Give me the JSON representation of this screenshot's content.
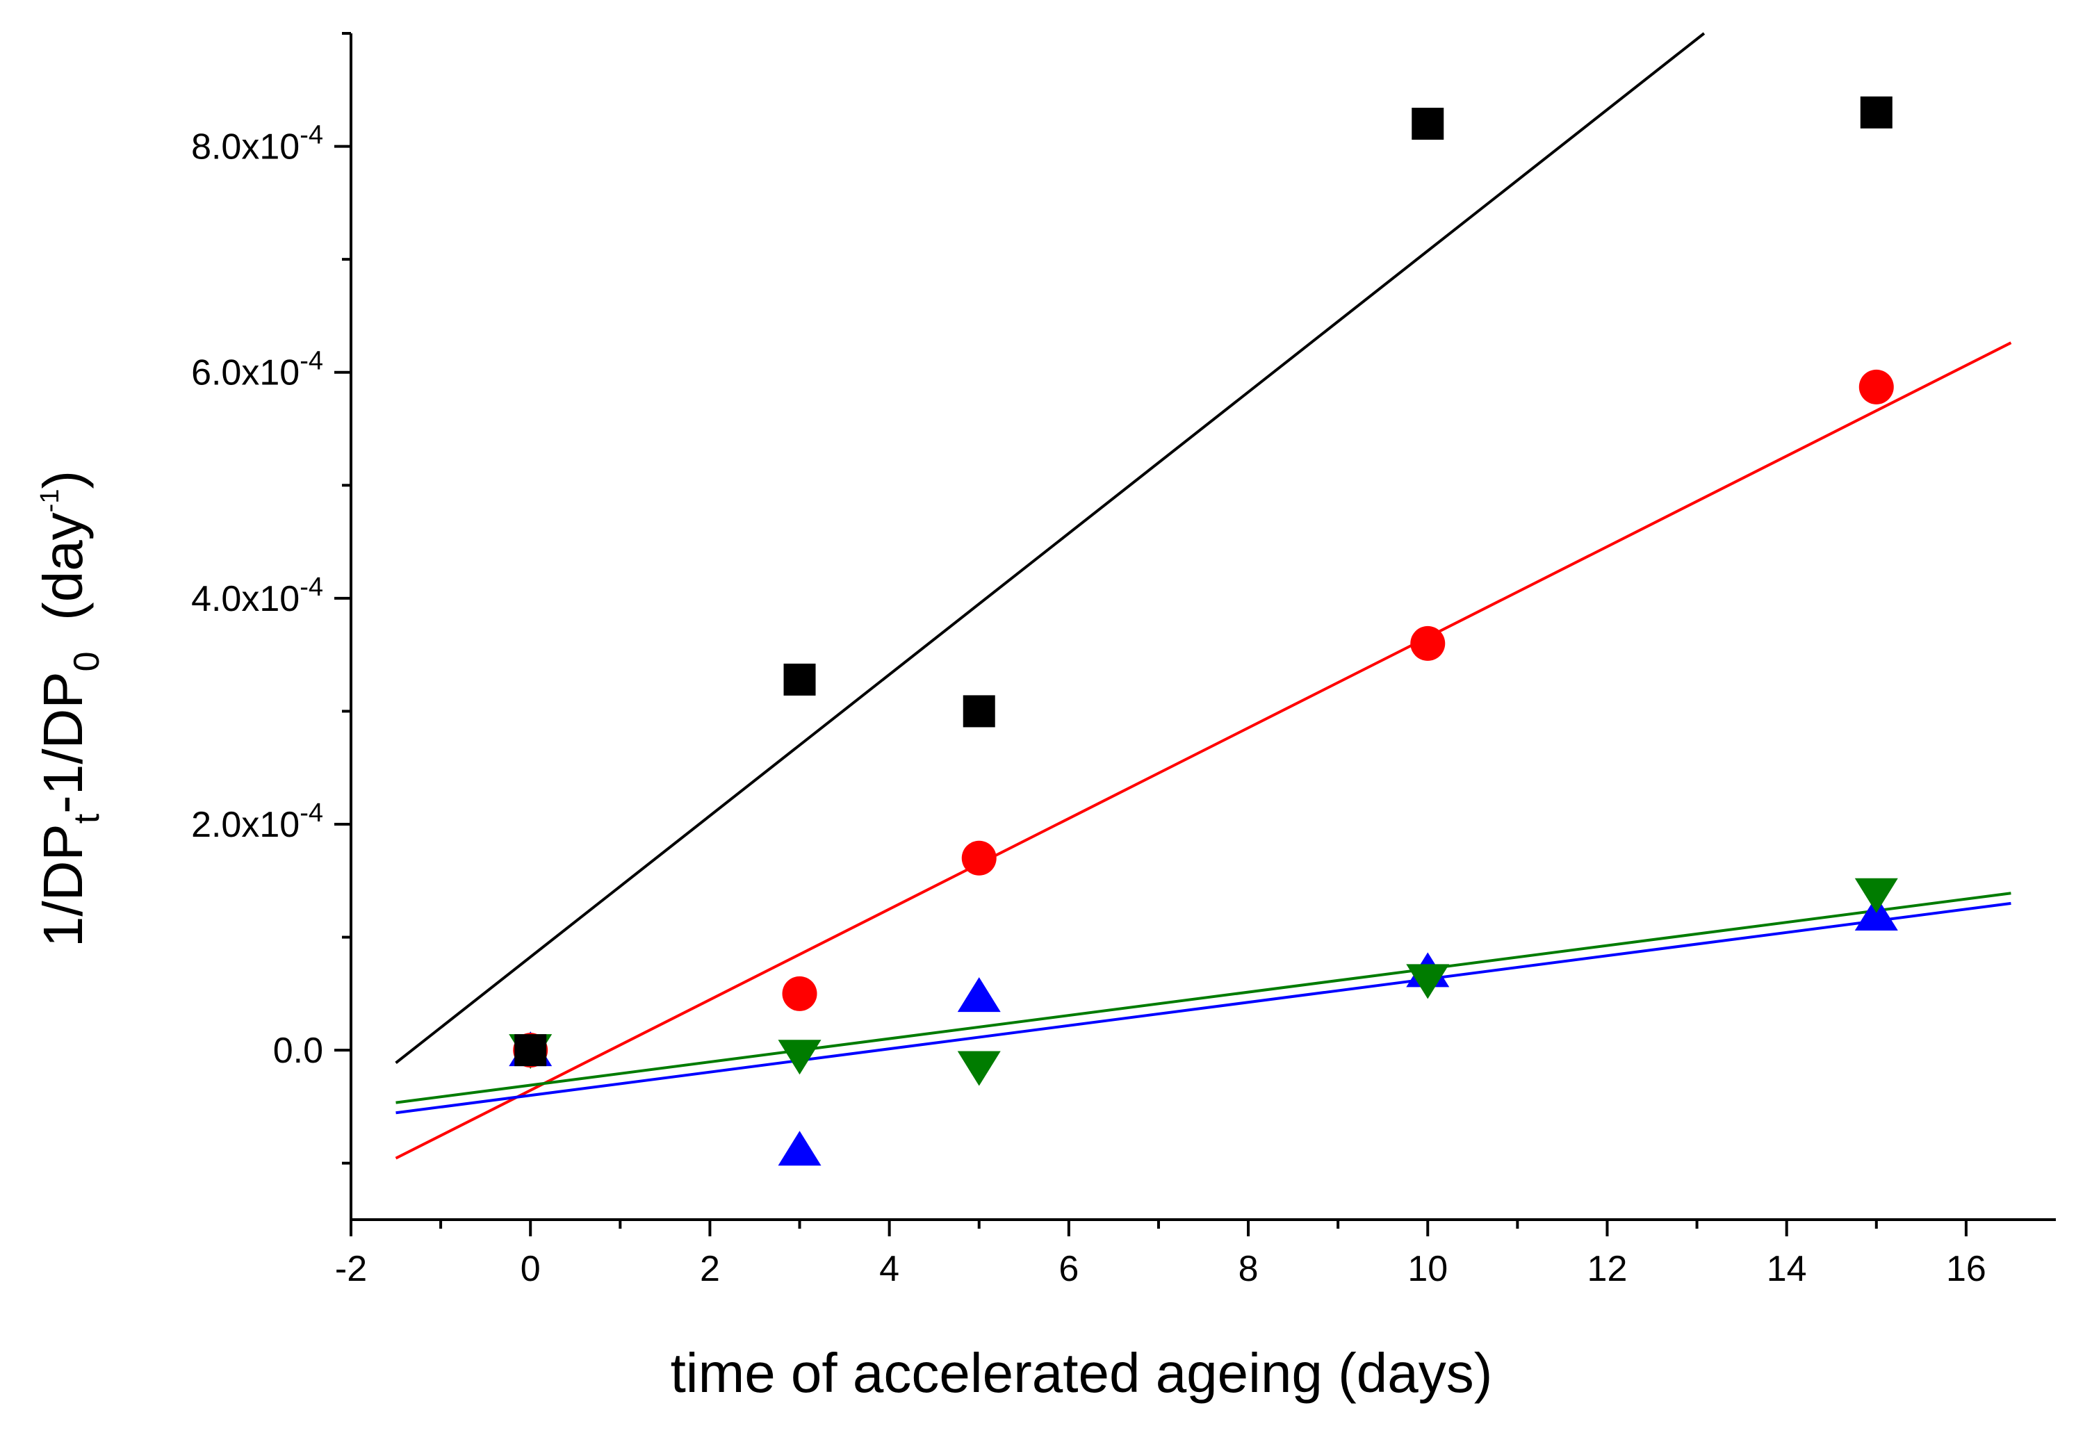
{
  "chart_data": {
    "type": "scatter",
    "title": "",
    "xlabel": "time of accelerated ageing (days)",
    "ylabel": {
      "main1": "1/DP",
      "sub1": "t",
      "main2": "-1/DP",
      "sub2": "0",
      "main3": "  (day",
      "sup": "-1",
      "main4": ")"
    },
    "xlim": [
      -2,
      17
    ],
    "ylim": [
      -0.00015,
      0.0009
    ],
    "x_ticks": [
      -2,
      0,
      2,
      4,
      6,
      8,
      10,
      12,
      14,
      16
    ],
    "y_ticks": [
      {
        "value": 0.0,
        "mantissa": "0.0",
        "exponent": ""
      },
      {
        "value": 0.0002,
        "mantissa": "2.0x10",
        "exponent": "-4"
      },
      {
        "value": 0.0004,
        "mantissa": "4.0x10",
        "exponent": "-4"
      },
      {
        "value": 0.0006,
        "mantissa": "6.0x10",
        "exponent": "-4"
      },
      {
        "value": 0.0008,
        "mantissa": "8.0x10",
        "exponent": "-4"
      }
    ],
    "series": [
      {
        "name": "black-squares",
        "marker": "square",
        "color": "#000000",
        "x": [
          0,
          3,
          5,
          10,
          15
        ],
        "y": [
          0.0,
          0.000328,
          0.0003,
          0.00082,
          0.00083
        ],
        "fit": {
          "slope": 6.25e-05,
          "intercept": 8.25e-05,
          "x_range": [
            -1.5,
            16.5
          ]
        }
      },
      {
        "name": "red-circles",
        "marker": "circle",
        "color": "#ff0000",
        "x": [
          0,
          3,
          5,
          10,
          15
        ],
        "y": [
          0.0,
          5e-05,
          0.00017,
          0.00036,
          0.000587
        ],
        "fit": {
          "slope": 4.01e-05,
          "intercept": -3.55e-05,
          "x_range": [
            -1.5,
            16.5
          ]
        }
      },
      {
        "name": "blue-triangles-up",
        "marker": "triangle-up",
        "color": "#0000ff",
        "x": [
          0,
          3,
          5,
          10,
          15
        ],
        "y": [
          0.0,
          -8.8e-05,
          4.8e-05,
          7e-05,
          0.00012
        ],
        "fit": {
          "slope": 1.03e-05,
          "intercept": -4e-05,
          "x_range": [
            -1.5,
            16.5
          ]
        }
      },
      {
        "name": "green-triangles-down",
        "marker": "triangle-down",
        "color": "#007c00",
        "x": [
          0,
          3,
          5,
          10,
          15
        ],
        "y": [
          0.0,
          -5e-06,
          -1.5e-05,
          6.2e-05,
          0.000138
        ],
        "fit": {
          "slope": 1.03e-05,
          "intercept": -3.1e-05,
          "x_range": [
            -1.5,
            16.5
          ]
        }
      }
    ]
  }
}
